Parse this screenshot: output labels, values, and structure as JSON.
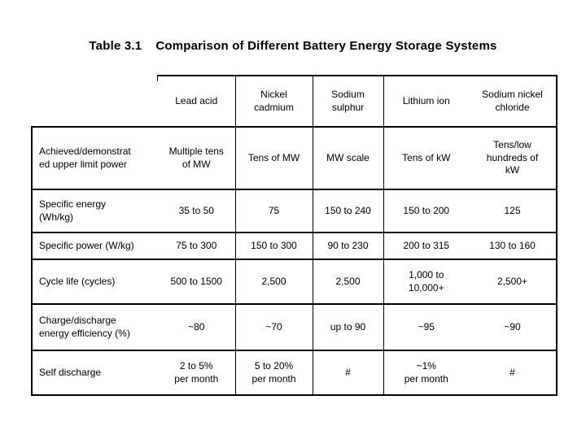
{
  "title": {
    "prefix": "Table 3.1",
    "text": "Comparison of Different Battery Energy Storage Systems"
  },
  "table": {
    "border_color": "#000000",
    "columns": [
      {
        "label": ""
      },
      {
        "label": "Lead acid"
      },
      {
        "label": "Nickel\ncadmium"
      },
      {
        "label": "Sodium\nsulphur"
      },
      {
        "label": "Lithium ion"
      },
      {
        "label": "Sodium nickel\nchloride"
      }
    ],
    "rows": [
      {
        "label": "Achieved/demonstrat\ned upper limit power",
        "cells": [
          "Multiple tens\nof MW",
          "Tens of MW",
          "MW scale",
          "Tens of kW",
          "Tens/low\nhundreds of\nkW"
        ]
      },
      {
        "label": "Specific energy\n(Wh/kg)",
        "cells": [
          "35 to 50",
          "75",
          "150 to 240",
          "150 to 200",
          "125"
        ]
      },
      {
        "label": "Specific power (W/kg)",
        "cells": [
          "75 to 300",
          "150 to 300",
          "90 to 230",
          "200 to 315",
          "130 to 160"
        ]
      },
      {
        "label": "Cycle life (cycles)",
        "cells": [
          "500 to 1500",
          "2,500",
          "2,500",
          "1,000 to\n10,000+",
          "2,500+"
        ]
      },
      {
        "label": "Charge/discharge\nenergy efficiency (%)",
        "cells": [
          "~80",
          "~70",
          "up to 90",
          "~95",
          "~90"
        ]
      },
      {
        "label": "Self discharge",
        "cells": [
          "2 to 5%\nper month",
          "5 to 20%\nper month",
          "#",
          "~1%\nper month",
          "#"
        ]
      }
    ]
  }
}
